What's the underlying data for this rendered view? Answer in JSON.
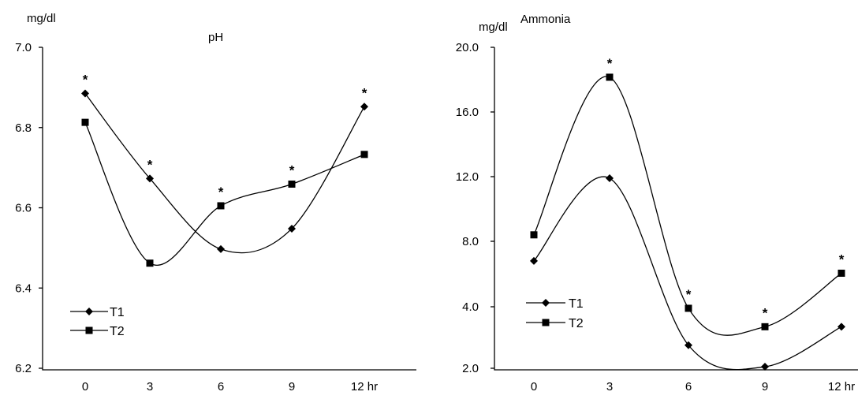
{
  "chart_data": [
    {
      "type": "line",
      "title": "pH",
      "ylabel": "mg/dl",
      "xlabel": "",
      "ylim": [
        6.2,
        7.0
      ],
      "yticks": [
        "6.2",
        "6.4",
        "6.6",
        "6.8",
        "7.0"
      ],
      "categories": [
        "0",
        "3",
        "6",
        "9",
        "12 hr"
      ],
      "x": [
        0,
        3,
        6,
        9,
        12
      ],
      "series": [
        {
          "name": "T1",
          "marker": "diamond",
          "values": [
            6.885,
            6.673,
            6.497,
            6.548,
            6.852
          ]
        },
        {
          "name": "T2",
          "marker": "square",
          "values": [
            6.813,
            6.462,
            6.605,
            6.659,
            6.733
          ]
        }
      ],
      "annotations": [
        "*",
        "*",
        "*",
        "*",
        "*"
      ],
      "legend_position": "bottom-left",
      "grid": false
    },
    {
      "type": "line",
      "title": "Ammonia",
      "ylabel": "mg/dl",
      "xlabel": "",
      "ylim": [
        2.0,
        20.0
      ],
      "yticks": [
        "2.0",
        "4.0",
        "8.0",
        "12.0",
        "16.0",
        "20.0"
      ],
      "categories": [
        "0",
        "3",
        "6",
        "9",
        "12 hr"
      ],
      "x": [
        0,
        3,
        6,
        9,
        12
      ],
      "series": [
        {
          "name": "T1",
          "marker": "diamond",
          "values": [
            6.8,
            11.9,
            2.75,
            2.05,
            3.35
          ]
        },
        {
          "name": "T2",
          "marker": "square",
          "values": [
            8.4,
            18.15,
            3.95,
            3.35,
            6.05
          ]
        }
      ],
      "annotations": [
        "*",
        "*",
        "*",
        "*"
      ],
      "legend_position": "bottom-left",
      "grid": false
    }
  ]
}
